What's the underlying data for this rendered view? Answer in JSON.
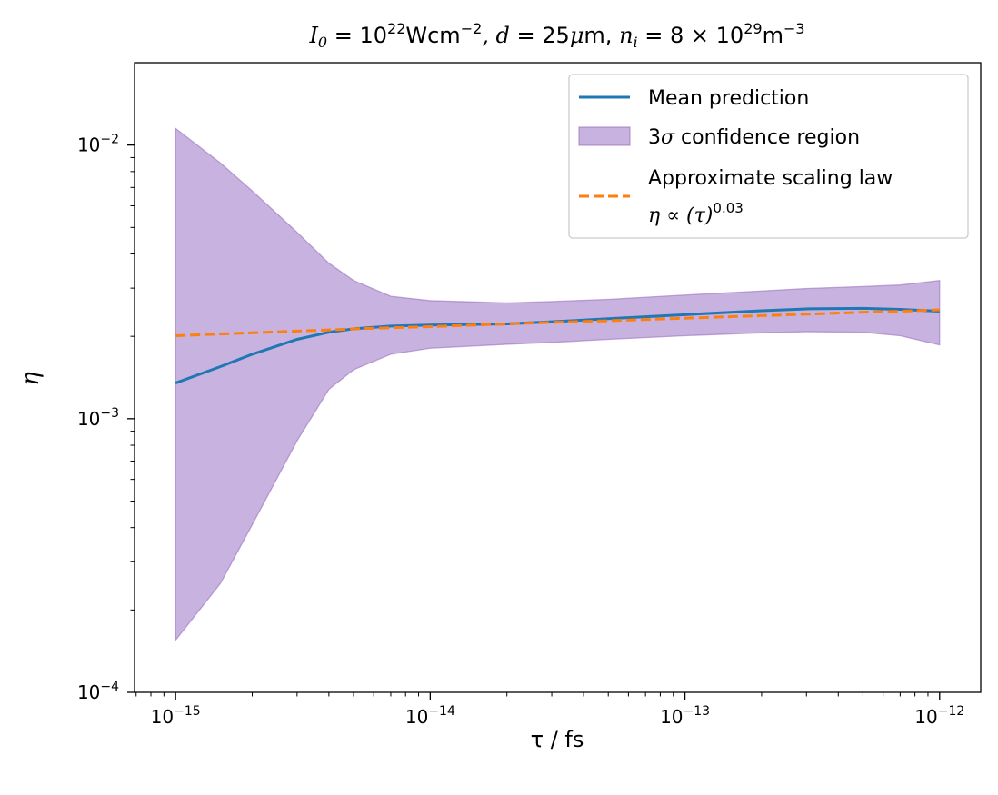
{
  "chart_data": {
    "type": "line",
    "title_parts": {
      "I0": "I",
      "I0_sub": "0",
      "I0_eq": " = 10",
      "I0_exp": "22",
      "I0_unit": "Wcm",
      "I0_unit_exp": "−2",
      "d_label": ", d",
      "d_eq": " = 25",
      "mu": "μ",
      "d_unit": "m, ",
      "n": "n",
      "n_sub": "i",
      "n_eq": " = 8 × 10",
      "n_exp": "29",
      "n_unit": "m",
      "n_unit_exp": "−3"
    },
    "xlabel": "τ / fs",
    "ylabel": "η",
    "xscale": "log",
    "yscale": "log",
    "xlim": [
      6.9e-16,
      1.45e-12
    ],
    "ylim": [
      0.0001,
      0.02
    ],
    "x_ticks": [
      {
        "value": 1e-15,
        "base": "10",
        "exp": "−15"
      },
      {
        "value": 1e-14,
        "base": "10",
        "exp": "−14"
      },
      {
        "value": 1e-13,
        "base": "10",
        "exp": "−13"
      },
      {
        "value": 1e-12,
        "base": "10",
        "exp": "−12"
      }
    ],
    "y_ticks": [
      {
        "value": 0.0001,
        "base": "10",
        "exp": "−4"
      },
      {
        "value": 0.001,
        "base": "10",
        "exp": "−3"
      },
      {
        "value": 0.01,
        "base": "10",
        "exp": "−2"
      }
    ],
    "x": [
      1e-15,
      1.5e-15,
      2e-15,
      3e-15,
      4e-15,
      5e-15,
      7e-15,
      1e-14,
      2e-14,
      3e-14,
      5e-14,
      1e-13,
      2e-13,
      3e-13,
      5e-13,
      7e-13,
      1e-12
    ],
    "series": [
      {
        "name": "Mean prediction",
        "style": "solid",
        "color": "#1f77b4",
        "values": [
          0.00135,
          0.00155,
          0.00172,
          0.00195,
          0.00207,
          0.00213,
          0.00218,
          0.0022,
          0.00222,
          0.00226,
          0.00232,
          0.0024,
          0.00248,
          0.00252,
          0.00253,
          0.00251,
          0.00247
        ]
      },
      {
        "name": "Approximate scaling law",
        "name_line2_prefix": "η ∝ (τ)",
        "name_line2_exp": "0.03",
        "style": "dashed",
        "color": "#ff7f0e",
        "values": [
          0.00201,
          0.00204,
          0.00206,
          0.00209,
          0.00211,
          0.00213,
          0.00215,
          0.00217,
          0.00222,
          0.00225,
          0.00228,
          0.00233,
          0.00238,
          0.00241,
          0.00245,
          0.00247,
          0.0025
        ]
      }
    ],
    "band": {
      "name_prefix": "3",
      "name_sigma": "σ",
      "name_suffix": " confidence region",
      "color": "#9467bd",
      "fill": "#c8b2df",
      "upper": [
        0.0115,
        0.0086,
        0.0068,
        0.0048,
        0.0037,
        0.0032,
        0.0028,
        0.0027,
        0.00265,
        0.00268,
        0.00273,
        0.00283,
        0.00293,
        0.00299,
        0.00304,
        0.00308,
        0.0032
      ],
      "lower": [
        0.000155,
        0.00025,
        0.00041,
        0.00083,
        0.00128,
        0.00151,
        0.00172,
        0.00181,
        0.00187,
        0.0019,
        0.00195,
        0.00201,
        0.00206,
        0.00208,
        0.00207,
        0.00201,
        0.00186
      ]
    },
    "legend_position": "top-right"
  }
}
